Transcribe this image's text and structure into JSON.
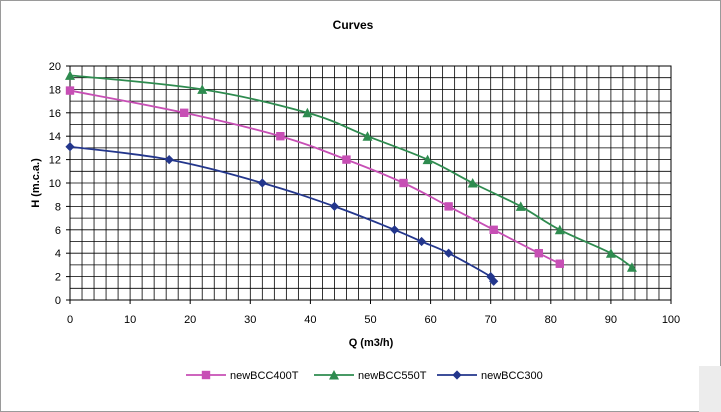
{
  "chart_data": {
    "type": "line",
    "title": "Curves",
    "xlabel": "Q (m3/h)",
    "ylabel": "H (m.c.a.)",
    "xlim": [
      0,
      100
    ],
    "ylim": [
      0,
      20
    ],
    "x_ticks": [
      "0",
      "10",
      "20",
      "30",
      "40",
      "50",
      "60",
      "70",
      "80",
      "90",
      "100"
    ],
    "y_ticks": [
      "0",
      "2",
      "4",
      "6",
      "8",
      "10",
      "12",
      "14",
      "16",
      "18",
      "20"
    ],
    "grid": true,
    "legend_position": "bottom",
    "series": [
      {
        "name": "newBCC400T",
        "color": "#c74fb5",
        "marker": "square",
        "points": [
          [
            0,
            17.9
          ],
          [
            19,
            16
          ],
          [
            35,
            14
          ],
          [
            46,
            12
          ],
          [
            55.5,
            10
          ],
          [
            63,
            8
          ],
          [
            70.5,
            6
          ],
          [
            78,
            4
          ],
          [
            81.5,
            3.1
          ]
        ]
      },
      {
        "name": "newBCC550T",
        "color": "#2e8b4f",
        "marker": "triangle",
        "points": [
          [
            0,
            19.2
          ],
          [
            22,
            18
          ],
          [
            39.5,
            16
          ],
          [
            49.5,
            14
          ],
          [
            59.5,
            12
          ],
          [
            67,
            10
          ],
          [
            75,
            8
          ],
          [
            81.5,
            6
          ],
          [
            90,
            4
          ],
          [
            93.5,
            2.8
          ]
        ]
      },
      {
        "name": "newBCC300",
        "color": "#23368c",
        "marker": "diamond",
        "points": [
          [
            0,
            13.1
          ],
          [
            16.5,
            12
          ],
          [
            32,
            10
          ],
          [
            44,
            8
          ],
          [
            54,
            6
          ],
          [
            58.5,
            5
          ],
          [
            63,
            4
          ],
          [
            70,
            2
          ],
          [
            70.5,
            1.6
          ]
        ]
      }
    ]
  }
}
